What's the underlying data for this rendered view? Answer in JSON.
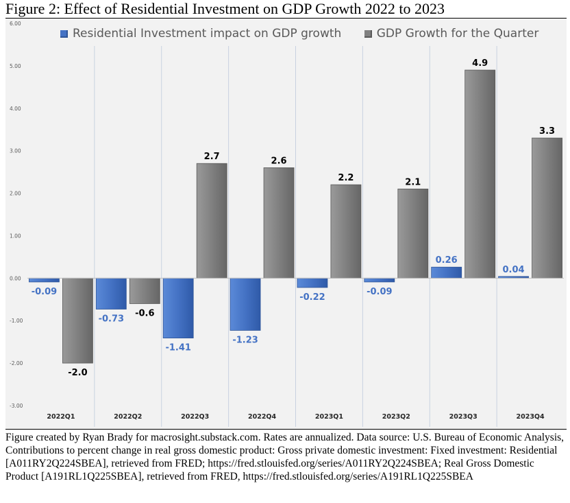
{
  "figure_title": "Figure 2: Effect of Residential Investment on GDP Growth 2022 to 2023",
  "caption": "Figure created by Ryan Brady for macrosight.substack.com. Rates are annualized. Data source: U.S. Bureau of Economic Analysis, Contributions to percent change in real gross domestic product: Gross private domestic investment: Fixed investment: Residential [A011RY2Q224SBEA], retrieved from FRED; https://fred.stlouisfed.org/series/A011RY2Q224SBEA;  Real Gross Domestic Product [A191RL1Q225SBEA], retrieved from FRED, https://fred.stlouisfed.org/series/A191RL1Q225SBEA",
  "chart_data": {
    "type": "bar",
    "categories": [
      "2022Q1",
      "2022Q2",
      "2022Q3",
      "2022Q4",
      "2023Q1",
      "2023Q2",
      "2023Q3",
      "2023Q4"
    ],
    "series": [
      {
        "name": "Residential Investment impact on GDP growth",
        "color": "#4472c4",
        "values": [
          -0.09,
          -0.73,
          -1.41,
          -1.23,
          -0.22,
          -0.09,
          0.26,
          0.04
        ],
        "labels": [
          "-0.09",
          "-0.73",
          "-1.41",
          "-1.23",
          "-0.22",
          "-0.09",
          "0.26",
          "0.04"
        ],
        "label_color": "#4472c4"
      },
      {
        "name": "GDP Growth for the Quarter",
        "color": "#808080",
        "values": [
          -2.0,
          -0.6,
          2.7,
          2.6,
          2.2,
          2.1,
          4.9,
          3.3
        ],
        "labels": [
          "-2.0",
          "-0.6",
          "2.7",
          "2.6",
          "2.2",
          "2.1",
          "4.9",
          "3.3"
        ],
        "label_color": "#000000"
      }
    ],
    "ylim": [
      -3,
      6
    ],
    "yticks": [
      "-3.00",
      "-2.00",
      "-1.00",
      "0.00",
      "1.00",
      "2.00",
      "3.00",
      "4.00",
      "5.00",
      "6.00"
    ],
    "legend_position": "top-center",
    "background": "#f2f2f2",
    "grid": false,
    "xlabel": "",
    "ylabel": ""
  }
}
